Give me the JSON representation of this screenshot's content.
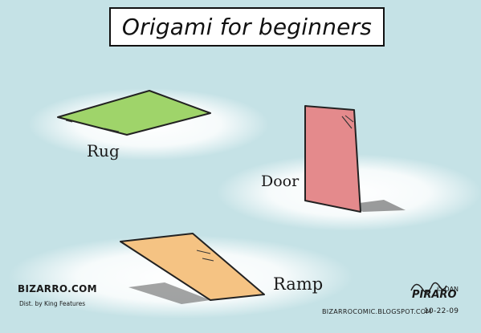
{
  "title": "Origami for beginners",
  "labels": {
    "rug": "Rug",
    "door": "Door",
    "ramp": "Ramp"
  },
  "credits": {
    "logo": "BIZARRO.COM",
    "distribution": "Dist. by King Features",
    "url": "BIZARROCOMIC.BLOGSPOT.COM",
    "copyright": "© DAN",
    "signature": "PIRARO",
    "date": "10-22-09"
  },
  "colors": {
    "background": "#c5e2e6",
    "rug": "#9fd46a",
    "door": "#e48a8c",
    "ramp": "#f5c383"
  }
}
